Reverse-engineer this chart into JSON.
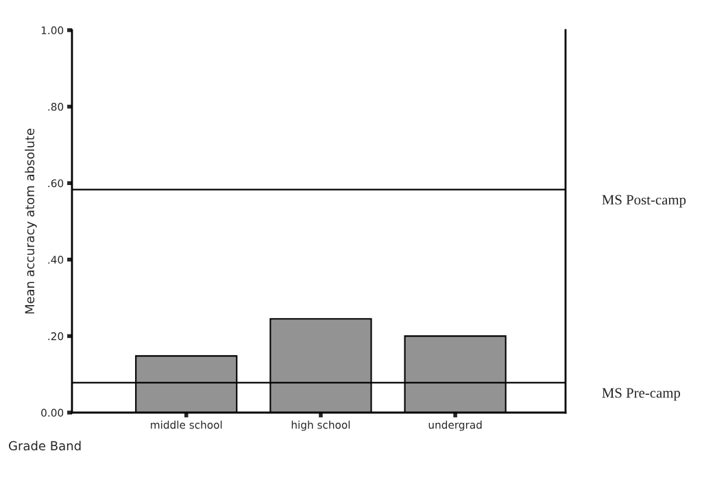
{
  "chart_data": {
    "type": "bar",
    "xlabel": "Grade Band",
    "ylabel": "Mean accuracy atom absolute",
    "categories": [
      "middle school",
      "high school",
      "undergrad"
    ],
    "values": [
      0.148,
      0.245,
      0.2
    ],
    "color": "#939393",
    "ylim": [
      0,
      1
    ],
    "yticks": [
      {
        "value": 0,
        "label": "0.00"
      },
      {
        "value": 0.2,
        "label": ".20"
      },
      {
        "value": 0.4,
        "label": ".40"
      },
      {
        "value": 0.6,
        "label": ".60"
      },
      {
        "value": 0.8,
        "label": ".80"
      },
      {
        "value": 1,
        "label": "1.00"
      }
    ],
    "ref_lines": [
      {
        "axis": "y",
        "value": 0.583,
        "label": "MS Post-camp",
        "color": "#000000"
      },
      {
        "axis": "y",
        "value": 0.078,
        "label": "MS Pre-camp",
        "color": "#000000"
      }
    ],
    "grid": false,
    "legend": false
  }
}
